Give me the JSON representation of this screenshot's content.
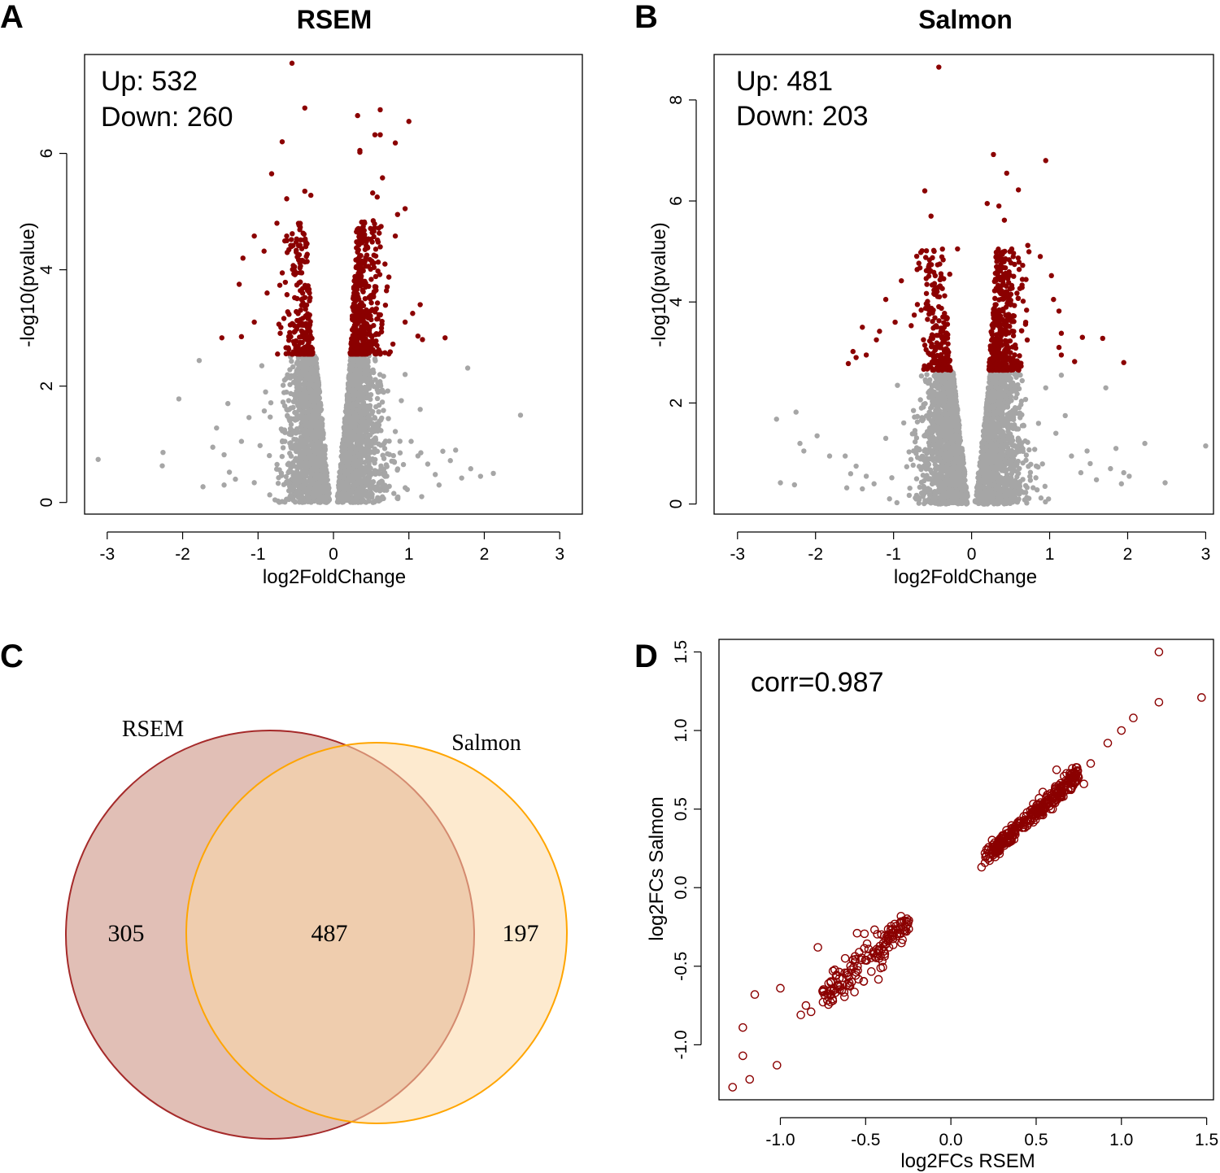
{
  "panels": {
    "A": {
      "letter": "A",
      "chart_data": {
        "type": "scatter",
        "title": "RSEM",
        "xlabel": "log2FoldChange",
        "ylabel": "-log10(pvalue)",
        "xlim": [
          -3.3,
          3.3
        ],
        "ylim": [
          -0.2,
          7.7
        ],
        "xticks": [
          "-3",
          "-2",
          "-1",
          "0",
          "1",
          "2",
          "3"
        ],
        "yticks": [
          "0",
          "2",
          "4",
          "6"
        ],
        "annotation_up": "Up: 532",
        "annotation_down": "Down: 260",
        "sig_threshold": 2.55,
        "colors": {
          "significant": "#8B0000",
          "nonsignificant": "#A6A6A6"
        },
        "nonsig_points": [
          [
            -3.12,
            0.74
          ],
          [
            -2.26,
            0.86
          ],
          [
            -2.27,
            0.63
          ],
          [
            -2.05,
            1.78
          ],
          [
            -1.78,
            2.44
          ],
          [
            -1.73,
            0.27
          ],
          [
            -1.55,
            1.28
          ],
          [
            -1.45,
            0.82
          ],
          [
            -1.38,
            0.52
          ],
          [
            -1.3,
            0.4
          ],
          [
            -1.22,
            1.05
          ],
          [
            -1.12,
            1.46
          ],
          [
            -1.05,
            0.34
          ],
          [
            1.03,
            1.05
          ],
          [
            1.12,
            0.8
          ],
          [
            1.25,
            0.66
          ],
          [
            1.35,
            0.48
          ],
          [
            1.45,
            0.88
          ],
          [
            1.55,
            0.72
          ],
          [
            1.62,
            0.9
          ],
          [
            1.78,
            2.31
          ],
          [
            1.7,
            0.42
          ],
          [
            1.82,
            0.58
          ],
          [
            2.12,
            0.5
          ],
          [
            2.48,
            1.5
          ],
          [
            -1.6,
            0.95
          ],
          [
            -1.4,
            1.7
          ],
          [
            -0.95,
            2.35
          ],
          [
            -0.9,
            1.9
          ],
          [
            0.95,
            2.2
          ],
          [
            0.9,
            1.75
          ],
          [
            1.15,
            1.6
          ],
          [
            1.4,
            0.3
          ],
          [
            -1.45,
            0.3
          ],
          [
            1.95,
            0.45
          ]
        ],
        "sig_points": [
          [
            -0.55,
            7.55
          ],
          [
            -0.38,
            6.78
          ],
          [
            -0.68,
            6.2
          ],
          [
            -0.82,
            5.65
          ],
          [
            -0.38,
            5.35
          ],
          [
            -0.3,
            5.28
          ],
          [
            -0.62,
            5.22
          ],
          [
            -1.05,
            4.58
          ],
          [
            -0.62,
            4.58
          ],
          [
            -1.2,
            4.2
          ],
          [
            -0.92,
            4.32
          ],
          [
            -0.48,
            4.22
          ],
          [
            -1.25,
            3.75
          ],
          [
            -0.88,
            3.6
          ],
          [
            -1.48,
            2.83
          ],
          [
            -1.22,
            2.85
          ],
          [
            -1.05,
            3.1
          ],
          [
            0.32,
            6.65
          ],
          [
            0.62,
            6.75
          ],
          [
            1.0,
            6.55
          ],
          [
            0.55,
            6.32
          ],
          [
            0.62,
            6.32
          ],
          [
            0.82,
            6.18
          ],
          [
            0.35,
            6.05
          ],
          [
            0.35,
            6.02
          ],
          [
            0.65,
            5.58
          ],
          [
            0.58,
            5.25
          ],
          [
            0.52,
            5.32
          ],
          [
            0.95,
            5.05
          ],
          [
            0.85,
            4.95
          ],
          [
            0.82,
            4.58
          ],
          [
            1.15,
            3.4
          ],
          [
            1.05,
            3.25
          ],
          [
            1.12,
            2.86
          ],
          [
            1.18,
            2.8
          ],
          [
            1.48,
            2.83
          ],
          [
            0.95,
            3.1
          ]
        ]
      }
    },
    "B": {
      "letter": "B",
      "chart_data": {
        "type": "scatter",
        "title": "Salmon",
        "xlabel": "log2FoldChange",
        "ylabel": "-log10(pvalue)",
        "xlim": [
          -3.3,
          3.1
        ],
        "ylim": [
          -0.2,
          8.9
        ],
        "xticks": [
          "-3",
          "-2",
          "-1",
          "0",
          "1",
          "2",
          "3"
        ],
        "yticks": [
          "0",
          "2",
          "4",
          "6",
          "8"
        ],
        "annotation_up": "Up: 481",
        "annotation_down": "Down: 203",
        "sig_threshold": 2.65,
        "colors": {
          "significant": "#8B0000",
          "nonsignificant": "#A6A6A6"
        },
        "nonsig_points": [
          [
            -2.5,
            1.68
          ],
          [
            -2.25,
            1.82
          ],
          [
            -2.2,
            1.2
          ],
          [
            -2.15,
            1.05
          ],
          [
            -2.45,
            0.42
          ],
          [
            -2.27,
            0.38
          ],
          [
            -1.98,
            1.35
          ],
          [
            -1.82,
            0.95
          ],
          [
            -1.62,
            0.95
          ],
          [
            -1.55,
            0.6
          ],
          [
            -1.48,
            0.75
          ],
          [
            -1.35,
            0.55
          ],
          [
            -1.25,
            0.4
          ],
          [
            -1.1,
            1.3
          ],
          [
            -1.6,
            0.32
          ],
          [
            1.08,
            1.4
          ],
          [
            1.2,
            1.75
          ],
          [
            1.28,
            0.95
          ],
          [
            1.4,
            0.62
          ],
          [
            1.48,
            1.05
          ],
          [
            1.52,
            0.8
          ],
          [
            1.6,
            0.48
          ],
          [
            1.72,
            2.3
          ],
          [
            1.78,
            0.7
          ],
          [
            1.92,
            0.4
          ],
          [
            2.02,
            0.55
          ],
          [
            2.22,
            1.2
          ],
          [
            2.48,
            0.42
          ],
          [
            3.0,
            1.15
          ],
          [
            1.85,
            1.1
          ],
          [
            -0.95,
            2.35
          ],
          [
            0.95,
            2.3
          ],
          [
            1.15,
            2.55
          ],
          [
            -1.4,
            0.3
          ],
          [
            1.95,
            0.62
          ]
        ],
        "sig_points": [
          [
            -0.42,
            8.65
          ],
          [
            -0.6,
            6.2
          ],
          [
            -0.52,
            5.7
          ],
          [
            -0.18,
            5.05
          ],
          [
            -0.58,
            4.62
          ],
          [
            -0.28,
            4.55
          ],
          [
            -0.9,
            4.42
          ],
          [
            -0.45,
            4.28
          ],
          [
            -1.1,
            4.05
          ],
          [
            -0.98,
            3.6
          ],
          [
            -1.18,
            3.42
          ],
          [
            -1.4,
            3.5
          ],
          [
            -1.52,
            3.02
          ],
          [
            -1.48,
            2.9
          ],
          [
            -1.35,
            2.95
          ],
          [
            -1.58,
            2.78
          ],
          [
            -1.22,
            3.25
          ],
          [
            0.28,
            6.92
          ],
          [
            0.95,
            6.8
          ],
          [
            0.45,
            6.55
          ],
          [
            0.6,
            6.22
          ],
          [
            0.2,
            5.95
          ],
          [
            0.35,
            5.9
          ],
          [
            0.42,
            5.62
          ],
          [
            0.72,
            5.12
          ],
          [
            0.88,
            4.9
          ],
          [
            1.05,
            4.05
          ],
          [
            1.12,
            3.82
          ],
          [
            1.15,
            3.38
          ],
          [
            1.12,
            3.1
          ],
          [
            1.15,
            2.95
          ],
          [
            1.42,
            3.3
          ],
          [
            1.68,
            3.28
          ],
          [
            1.95,
            2.8
          ],
          [
            1.32,
            2.82
          ]
        ]
      }
    },
    "C": {
      "letter": "C",
      "venn": {
        "set1_label": "RSEM",
        "set2_label": "Salmon",
        "only_set1": "305",
        "intersection": "487",
        "only_set2": "197",
        "set1_fill": "#C98B7A",
        "set1_stroke": "#A52A2A",
        "set2_fill": "#FCD9A8",
        "set2_stroke": "#FFA500"
      }
    },
    "D": {
      "letter": "D",
      "chart_data": {
        "type": "scatter",
        "xlabel": "log2FCs RSEM",
        "ylabel": "log2FCs Salmon",
        "xlim": [
          -1.36,
          1.54
        ],
        "ylim": [
          -1.35,
          1.58
        ],
        "xticks": [
          "-1.0",
          "-0.5",
          "0.0",
          "0.5",
          "1.0",
          "1.5"
        ],
        "yticks": [
          "-1.0",
          "-0.5",
          "0.0",
          "0.5",
          "1.0",
          "1.5"
        ],
        "annotation": "corr=0.987",
        "marker_color": "#8B0000",
        "outlier_points": [
          [
            -1.28,
            -1.27
          ],
          [
            -1.18,
            -1.22
          ],
          [
            -1.22,
            -1.07
          ],
          [
            -1.22,
            -0.89
          ],
          [
            -1.15,
            -0.68
          ],
          [
            -1.02,
            -1.13
          ],
          [
            -1.0,
            -0.64
          ],
          [
            1.22,
            1.5
          ],
          [
            1.47,
            1.21
          ],
          [
            1.22,
            1.18
          ],
          [
            1.07,
            1.08
          ],
          [
            1.0,
            1.0
          ],
          [
            0.92,
            0.92
          ],
          [
            0.82,
            0.79
          ],
          [
            0.62,
            0.75
          ],
          [
            0.78,
            0.66
          ],
          [
            -0.88,
            -0.81
          ],
          [
            -0.82,
            -0.79
          ],
          [
            -0.78,
            -0.38
          ],
          [
            -0.85,
            -0.75
          ],
          [
            -0.62,
            -0.45
          ],
          [
            -0.55,
            -0.29
          ],
          [
            -0.42,
            -0.45
          ],
          [
            -0.25,
            -0.22
          ],
          [
            0.2,
            0.22
          ],
          [
            0.18,
            0.13
          ]
        ]
      }
    }
  }
}
